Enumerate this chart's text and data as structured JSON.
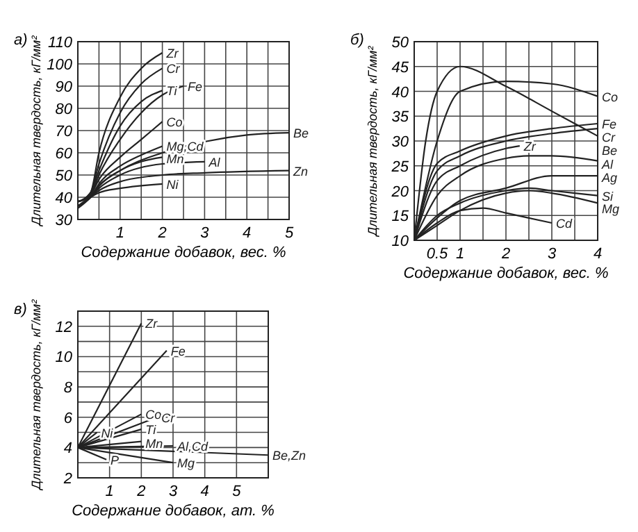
{
  "chart_data": [
    {
      "type": "line",
      "title": "а)",
      "xlabel": "Содержание добавок, вес. %",
      "ylabel": "Длительная твердость, кГ/мм²",
      "xlim": [
        0,
        5
      ],
      "ylim": [
        30,
        110
      ],
      "grid": true,
      "xticks": [
        {
          "value": 0,
          "label": null
        },
        {
          "value": 0.5,
          "label": null
        },
        1,
        {
          "value": 1.5,
          "label": null
        },
        2,
        {
          "value": 2.5,
          "label": null
        },
        3,
        {
          "value": 3.5,
          "label": null
        },
        4,
        {
          "value": 4.5,
          "label": null
        },
        5
      ],
      "yticks": [
        30,
        40,
        50,
        60,
        70,
        80,
        90,
        100,
        110
      ],
      "series": [
        {
          "name": "Zr",
          "color": "#222222",
          "x": [
            0,
            0.3,
            0.5,
            1,
            1.5,
            2
          ],
          "values": [
            38,
            42,
            60,
            85,
            98,
            105
          ]
        },
        {
          "name": "Cr",
          "color": "#222222",
          "x": [
            0,
            0.3,
            0.5,
            1,
            1.5,
            2
          ],
          "values": [
            38,
            42,
            55,
            78,
            91,
            98
          ]
        },
        {
          "name": "Ti",
          "color": "#222222",
          "x": [
            0,
            0.3,
            0.5,
            1,
            1.5,
            2
          ],
          "values": [
            38,
            42,
            52,
            72,
            83,
            88
          ]
        },
        {
          "name": "Fe",
          "color": "#222222",
          "x": [
            0,
            0.3,
            0.5,
            1,
            1.5,
            2,
            2.5
          ],
          "values": [
            38,
            41,
            50,
            66,
            78,
            86,
            90
          ]
        },
        {
          "name": "Co",
          "color": "#222222",
          "x": [
            0,
            0.3,
            0.5,
            1,
            1.5,
            2
          ],
          "values": [
            38,
            41,
            48,
            58,
            66,
            74
          ]
        },
        {
          "name": "Mg,Cd",
          "color": "#222222",
          "x": [
            0,
            0.3,
            0.5,
            1,
            1.5,
            2
          ],
          "values": [
            36,
            40,
            46,
            54,
            59,
            63
          ]
        },
        {
          "name": "Be",
          "color": "#222222",
          "x": [
            0,
            0.3,
            0.5,
            1,
            2,
            3,
            4,
            5
          ],
          "values": [
            35,
            40,
            45,
            52,
            60,
            65,
            68,
            69
          ]
        },
        {
          "name": "Mn",
          "color": "#222222",
          "x": [
            0,
            0.3,
            0.5,
            1,
            1.5,
            2
          ],
          "values": [
            36,
            40,
            45,
            52,
            56,
            58
          ]
        },
        {
          "name": "Al",
          "color": "#222222",
          "x": [
            0,
            0.3,
            0.5,
            1,
            2,
            3
          ],
          "values": [
            36,
            40,
            44,
            50,
            55,
            56
          ]
        },
        {
          "name": "Zn",
          "color": "#222222",
          "x": [
            0,
            0.3,
            0.5,
            1,
            2,
            3,
            5
          ],
          "values": [
            36,
            40,
            43,
            47,
            50,
            51,
            52
          ]
        },
        {
          "name": "Ni",
          "color": "#222222",
          "x": [
            0,
            0.3,
            0.5,
            1,
            2
          ],
          "values": [
            36,
            40,
            42,
            44,
            46
          ]
        }
      ]
    },
    {
      "type": "line",
      "title": "б)",
      "xlabel": "Содержание добавок, вес. %",
      "ylabel": "Длительная твердость, кГ/мм²",
      "xlim": [
        0,
        4
      ],
      "ylim": [
        10,
        50
      ],
      "grid": true,
      "xticks": [
        {
          "value": 0,
          "label": null
        },
        0.5,
        1,
        {
          "value": 1.5,
          "label": null
        },
        2,
        {
          "value": 2.5,
          "label": null
        },
        3,
        {
          "value": 3.5,
          "label": null
        },
        4
      ],
      "yticks": [
        10,
        15,
        20,
        25,
        30,
        35,
        40,
        45,
        50
      ],
      "series": [
        {
          "name": "Co",
          "color": "#222222",
          "x": [
            0,
            0.5,
            1,
            2,
            3,
            4
          ],
          "values": [
            10,
            30,
            40,
            42,
            41.5,
            39
          ]
        },
        {
          "name": "Fe",
          "color": "#222222",
          "x": [
            0,
            0.5,
            1,
            2,
            3,
            4
          ],
          "values": [
            10,
            25.5,
            28,
            31,
            32.5,
            33.5
          ]
        },
        {
          "name": "Cr",
          "color": "#222222",
          "x": [
            0,
            0.5,
            1,
            2,
            3,
            4
          ],
          "values": [
            10,
            24,
            27,
            30,
            31.5,
            32.5
          ]
        },
        {
          "name": "Be",
          "color": "#222222",
          "x": [
            0,
            0.25,
            0.5,
            1,
            2,
            3,
            4
          ],
          "values": [
            10,
            30,
            40,
            45,
            41,
            36,
            31
          ]
        },
        {
          "name": "Zr",
          "color": "#222222",
          "x": [
            0,
            0.5,
            1,
            2,
            2.3
          ],
          "values": [
            10,
            22,
            25,
            28.5,
            29
          ]
        },
        {
          "name": "Al",
          "color": "#222222",
          "x": [
            0,
            0.5,
            1,
            2,
            2.5,
            3,
            4
          ],
          "values": [
            10,
            19,
            23,
            26.5,
            27,
            27,
            26
          ]
        },
        {
          "name": "Ag",
          "color": "#222222",
          "x": [
            0,
            0.5,
            1,
            2,
            3,
            4
          ],
          "values": [
            10,
            14.5,
            18,
            20.5,
            23,
            23
          ]
        },
        {
          "name": "Si",
          "color": "#222222",
          "x": [
            0,
            0.5,
            1,
            2,
            2.5,
            3,
            4
          ],
          "values": [
            10,
            15,
            17.5,
            20,
            20.5,
            20,
            19
          ]
        },
        {
          "name": "Mg",
          "color": "#222222",
          "x": [
            0,
            0.5,
            1,
            2,
            2.5,
            3,
            4
          ],
          "values": [
            10,
            13,
            16,
            19.5,
            20,
            19.5,
            17.5
          ]
        },
        {
          "name": "Cd",
          "color": "#222222",
          "x": [
            0,
            0.5,
            1,
            1.5,
            2,
            2.5,
            3
          ],
          "values": [
            10,
            13.5,
            16,
            16.5,
            15.5,
            14.5,
            13.5
          ]
        }
      ]
    },
    {
      "type": "line",
      "title": "в)",
      "xlabel": "Содержание добавок, ат. %",
      "ylabel": "Длительная твердость, кГ/мм²",
      "xlim": [
        0,
        6
      ],
      "ylim": [
        2,
        13
      ],
      "grid": true,
      "xticks": [
        {
          "value": 0,
          "label": null
        },
        1,
        2,
        3,
        4,
        5,
        {
          "value": 6,
          "label": null
        }
      ],
      "yticks": [
        2,
        {
          "value": 3,
          "label": null
        },
        4,
        {
          "value": 5,
          "label": null
        },
        6,
        {
          "value": 7,
          "label": null
        },
        8,
        {
          "value": 9,
          "label": null
        },
        10,
        {
          "value": 11,
          "label": null
        },
        12,
        {
          "value": 13,
          "label": null
        }
      ],
      "series": [
        {
          "name": "Zr",
          "color": "#222222",
          "x": [
            0,
            2
          ],
          "values": [
            4,
            12.2
          ]
        },
        {
          "name": "Fe",
          "color": "#222222",
          "x": [
            0,
            2.8
          ],
          "values": [
            4,
            10.4
          ]
        },
        {
          "name": "Co",
          "color": "#222222",
          "x": [
            0,
            2
          ],
          "values": [
            4,
            6.2
          ]
        },
        {
          "name": "Cr",
          "color": "#222222",
          "x": [
            0,
            2.5
          ],
          "values": [
            4,
            6
          ]
        },
        {
          "name": "Ni",
          "color": "#222222",
          "x": [
            0,
            0.6
          ],
          "values": [
            4,
            5
          ]
        },
        {
          "name": "Ti",
          "color": "#222222",
          "x": [
            0,
            2
          ],
          "values": [
            4,
            5.2
          ]
        },
        {
          "name": "Mn",
          "color": "#222222",
          "x": [
            0,
            2
          ],
          "values": [
            4,
            4.4
          ]
        },
        {
          "name": "Al,Cd",
          "color": "#222222",
          "x": [
            0,
            3
          ],
          "values": [
            4,
            4.1
          ]
        },
        {
          "name": "Be,Zn",
          "color": "#222222",
          "x": [
            0,
            6
          ],
          "values": [
            4,
            3.5
          ]
        },
        {
          "name": "Mg",
          "color": "#222222",
          "x": [
            0,
            3
          ],
          "values": [
            4,
            3
          ]
        },
        {
          "name": "P",
          "color": "#222222",
          "x": [
            0,
            0.9
          ],
          "values": [
            4,
            3.2
          ]
        }
      ]
    }
  ]
}
